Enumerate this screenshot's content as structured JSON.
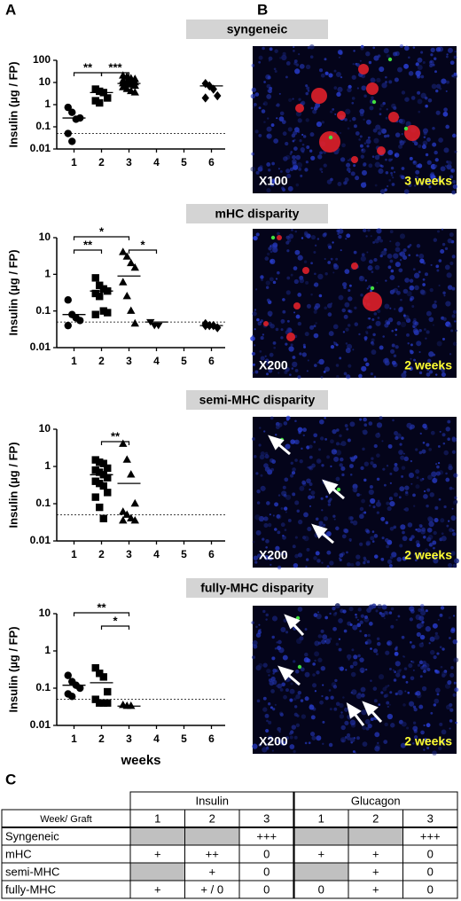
{
  "panels": [
    "A",
    "B",
    "C"
  ],
  "chart_data": [
    {
      "type": "scatter",
      "title": "syngeneic",
      "y_label": "Insulin (µg / FP)",
      "xlim": [
        0.5,
        6.5
      ],
      "xticks": [
        1,
        2,
        3,
        4,
        5,
        6
      ],
      "ylim": [
        0.01,
        100
      ],
      "yticks": [
        0.01,
        0.1,
        1,
        10,
        100
      ],
      "log_y": true,
      "threshold": 0.05,
      "series": [
        {
          "marker": "circle",
          "color": "#000000",
          "x": [
            1,
            1,
            1,
            1,
            1,
            1
          ],
          "values": [
            0.75,
            0.45,
            0.22,
            0.25,
            0.05,
            0.022
          ],
          "mean": 0.25
        },
        {
          "marker": "square",
          "color": "#000000",
          "x": [
            2,
            2,
            2,
            2,
            2,
            2
          ],
          "values": [
            5,
            4,
            3.5,
            2,
            1.5,
            1.2
          ],
          "mean": 3.5
        },
        {
          "marker": "triangle",
          "color": "#000000",
          "x": [
            3,
            3,
            3,
            3,
            3,
            3,
            3,
            3,
            3,
            3,
            3,
            3,
            3,
            3,
            3,
            3
          ],
          "values": [
            20,
            18,
            15,
            14,
            12,
            11,
            10,
            10,
            9,
            8,
            8,
            7,
            6,
            5,
            4,
            3.5
          ],
          "mean": 9
        },
        {
          "marker": "diamond",
          "color": "#000000",
          "x": [
            6,
            6,
            6,
            6,
            6
          ],
          "values": [
            9,
            7,
            5,
            2.5,
            2
          ],
          "mean": 7
        }
      ],
      "brackets": [
        {
          "from": 1,
          "to": 2,
          "label": "**"
        },
        {
          "from": 2,
          "to": 3,
          "label": "***"
        }
      ]
    },
    {
      "type": "scatter",
      "title": "mHC disparity",
      "y_label": "Insulin (µg / FP)",
      "xlim": [
        0.5,
        6.5
      ],
      "xticks": [
        1,
        2,
        3,
        4,
        5,
        6
      ],
      "ylim": [
        0.01,
        10
      ],
      "yticks": [
        0.01,
        0.1,
        1,
        10
      ],
      "log_y": true,
      "threshold": 0.05,
      "series": [
        {
          "marker": "circle",
          "color": "#000000",
          "x": [
            1,
            1,
            1,
            1,
            1
          ],
          "values": [
            0.2,
            0.08,
            0.065,
            0.055,
            0.04
          ],
          "mean": 0.08
        },
        {
          "marker": "square",
          "color": "#000000",
          "x": [
            2,
            2,
            2,
            2,
            2,
            2,
            2,
            2,
            2
          ],
          "values": [
            0.8,
            0.5,
            0.4,
            0.35,
            0.3,
            0.25,
            0.1,
            0.09,
            0.08
          ],
          "mean": 0.35
        },
        {
          "marker": "triangle",
          "color": "#000000",
          "x": [
            3,
            3,
            3,
            3,
            3,
            3,
            3,
            3
          ],
          "values": [
            4,
            3,
            2,
            1.5,
            0.6,
            0.25,
            0.1,
            0.045
          ],
          "mean": 0.9
        },
        {
          "marker": "triangle-down",
          "color": "#000000",
          "x": [
            4,
            4,
            4
          ],
          "values": [
            0.05,
            0.04,
            0.04
          ],
          "mean": 0.05
        },
        {
          "marker": "diamond",
          "color": "#000000",
          "x": [
            6,
            6,
            6,
            6,
            6
          ],
          "values": [
            0.045,
            0.04,
            0.04,
            0.035,
            0.04
          ],
          "mean": 0.04
        }
      ],
      "brackets": [
        {
          "from": 1,
          "to": 2,
          "label": "**"
        },
        {
          "from": 1,
          "to": 3,
          "label": "*"
        },
        {
          "from": 3,
          "to": 4,
          "label": "*"
        }
      ]
    },
    {
      "type": "scatter",
      "title": "semi-MHC disparity",
      "y_label": "Insulin (µg / FP)",
      "xlim": [
        0.5,
        6.5
      ],
      "xticks": [
        1,
        2,
        3,
        4,
        5,
        6
      ],
      "ylim": [
        0.01,
        10
      ],
      "yticks": [
        0.01,
        0.1,
        1,
        10
      ],
      "log_y": true,
      "threshold": 0.05,
      "series": [
        {
          "marker": "square",
          "color": "#000000",
          "x": [
            2,
            2,
            2,
            2,
            2,
            2,
            2,
            2,
            2,
            2,
            2,
            2,
            2,
            2,
            2
          ],
          "values": [
            1.5,
            1.3,
            1.2,
            0.9,
            0.8,
            0.7,
            0.6,
            0.5,
            0.4,
            0.35,
            0.3,
            0.2,
            0.15,
            0.08,
            0.04
          ],
          "mean": 0.6
        },
        {
          "marker": "triangle",
          "color": "#000000",
          "x": [
            3,
            3,
            3,
            3,
            3,
            3,
            3,
            3,
            3
          ],
          "values": [
            4,
            1.5,
            0.6,
            0.1,
            0.06,
            0.05,
            0.04,
            0.035,
            0.035
          ],
          "mean": 0.35
        }
      ],
      "brackets": [
        {
          "from": 2,
          "to": 3,
          "label": "**"
        }
      ]
    },
    {
      "type": "scatter",
      "title": "fully-MHC disparity",
      "y_label": "Insulin (µg / FP)",
      "x_label": "weeks",
      "xlim": [
        0.5,
        6.5
      ],
      "xticks": [
        1,
        2,
        3,
        4,
        5,
        6
      ],
      "ylim": [
        0.01,
        10
      ],
      "yticks": [
        0.01,
        0.1,
        1,
        10
      ],
      "log_y": true,
      "threshold": 0.05,
      "series": [
        {
          "marker": "circle",
          "color": "#000000",
          "x": [
            1,
            1,
            1,
            1,
            1,
            1
          ],
          "values": [
            0.22,
            0.15,
            0.12,
            0.1,
            0.07,
            0.06
          ],
          "mean": 0.12
        },
        {
          "marker": "square",
          "color": "#000000",
          "x": [
            2,
            2,
            2,
            2,
            2,
            2,
            2,
            2
          ],
          "values": [
            0.35,
            0.25,
            0.2,
            0.08,
            0.05,
            0.04,
            0.04,
            0.04
          ],
          "mean": 0.14
        },
        {
          "marker": "triangle",
          "color": "#000000",
          "x": [
            3,
            3,
            3
          ],
          "values": [
            0.035,
            0.033,
            0.033
          ],
          "mean": 0.033
        }
      ],
      "brackets": [
        {
          "from": 2,
          "to": 3,
          "label": "*"
        },
        {
          "from": 1,
          "to": 3,
          "label": "**"
        }
      ]
    }
  ],
  "micrographs": [
    {
      "magnification": "X100",
      "time": "3 weeks"
    },
    {
      "magnification": "X200",
      "time": "2 weeks"
    },
    {
      "magnification": "X200",
      "time": "2 weeks"
    },
    {
      "magnification": "X200",
      "time": "2 weeks"
    }
  ],
  "table": {
    "groups": [
      "Insulin",
      "Glucagon"
    ],
    "header": [
      "Week/ Graft",
      1,
      2,
      3,
      1,
      2,
      3
    ],
    "rows": [
      [
        "Syngeneic",
        null,
        null,
        "+++",
        null,
        null,
        "+++"
      ],
      [
        "mHC",
        "+",
        "++",
        "0",
        "+",
        "+",
        "0"
      ],
      [
        "semi-MHC",
        null,
        "+",
        "0",
        null,
        "+",
        "0"
      ],
      [
        "fully-MHC",
        "+",
        "+ / 0",
        "0",
        "0",
        "+",
        "0"
      ]
    ]
  }
}
